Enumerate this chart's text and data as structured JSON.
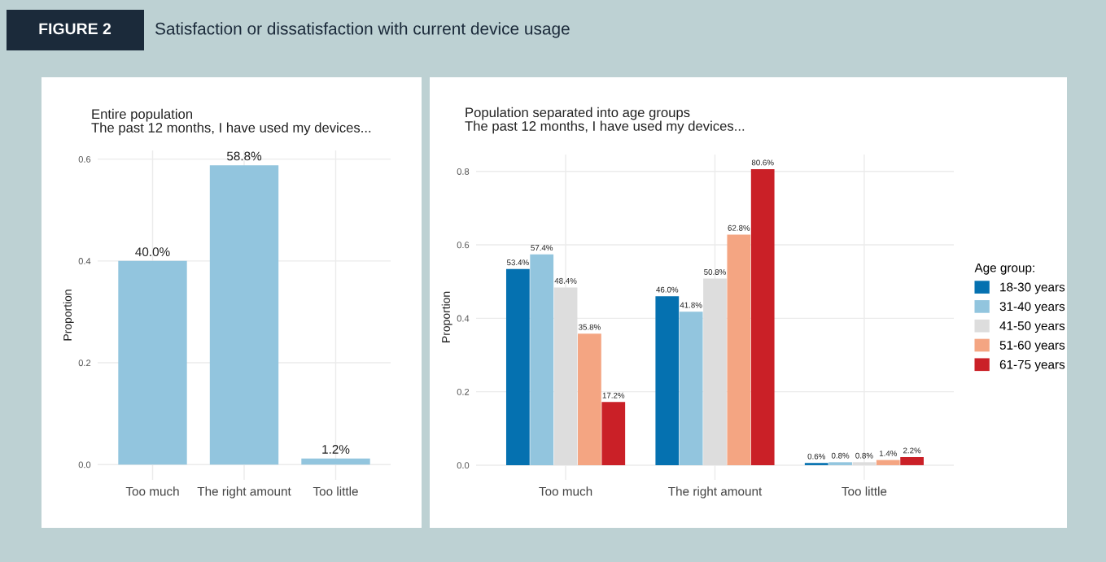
{
  "chart_data": [
    {
      "type": "bar",
      "title": "Entire population",
      "subtitle": "The past 12 months, I have used my devices...",
      "ylabel": "Proportion",
      "annotations": [
        "FIGURE 2",
        "Satisfaction or dissatisfaction with current device usage"
      ],
      "categories": [
        "Too much",
        "The right amount",
        "Too little"
      ],
      "values": [
        0.4,
        0.588,
        0.012
      ],
      "color": "#92c5de",
      "value_labels": [
        "40.0%",
        "58.8%",
        "1.2%"
      ],
      "ylim": [
        -0.03,
        0.617
      ],
      "yticks": [
        {
          "value": 0,
          "label": "0.0"
        },
        {
          "value": 0.2,
          "label": "0.2"
        },
        {
          "value": 0.4,
          "label": "0.4"
        },
        {
          "value": 0.6,
          "label": "0.6"
        }
      ],
      "grid": true
    },
    {
      "type": "bar",
      "title": "Population separated into age groups",
      "subtitle": "The past 12 months, I have used my devices...",
      "ylabel": "Proportion",
      "categories": [
        "Too much",
        "The right amount",
        "Too little"
      ],
      "series": [
        {
          "name": "18-30 years",
          "color": "#0571b0",
          "values": [
            0.534,
            0.46,
            0.006
          ],
          "value_labels": [
            "53.4%",
            "46.0%",
            "0.6%"
          ]
        },
        {
          "name": "31-40 years",
          "color": "#92c5de",
          "values": [
            0.574,
            0.418,
            0.008
          ],
          "value_labels": [
            "57.4%",
            "41.8%",
            "0.8%"
          ]
        },
        {
          "name": "41-50 years",
          "color": "#dddddd",
          "values": [
            0.484,
            0.508,
            0.008
          ],
          "value_labels": [
            "48.4%",
            "50.8%",
            "0.8%"
          ]
        },
        {
          "name": "51-60 years",
          "color": "#f4a582",
          "values": [
            0.358,
            0.628,
            0.014
          ],
          "value_labels": [
            "35.8%",
            "62.8%",
            "1.4%"
          ]
        },
        {
          "name": "61-75 years",
          "color": "#ca2027",
          "values": [
            0.172,
            0.806,
            0.022
          ],
          "value_labels": [
            "17.2%",
            "80.6%",
            "2.2%"
          ]
        }
      ],
      "legend": "right",
      "legend_title": "Age group:",
      "ylim": [
        -0.04,
        0.846
      ],
      "yticks": [
        {
          "value": 0,
          "label": "0.0"
        },
        {
          "value": 0.2,
          "label": "0.2"
        },
        {
          "value": 0.4,
          "label": "0.4"
        },
        {
          "value": 0.6,
          "label": "0.6"
        },
        {
          "value": 0.8,
          "label": "0.8"
        }
      ],
      "grid": true
    }
  ]
}
